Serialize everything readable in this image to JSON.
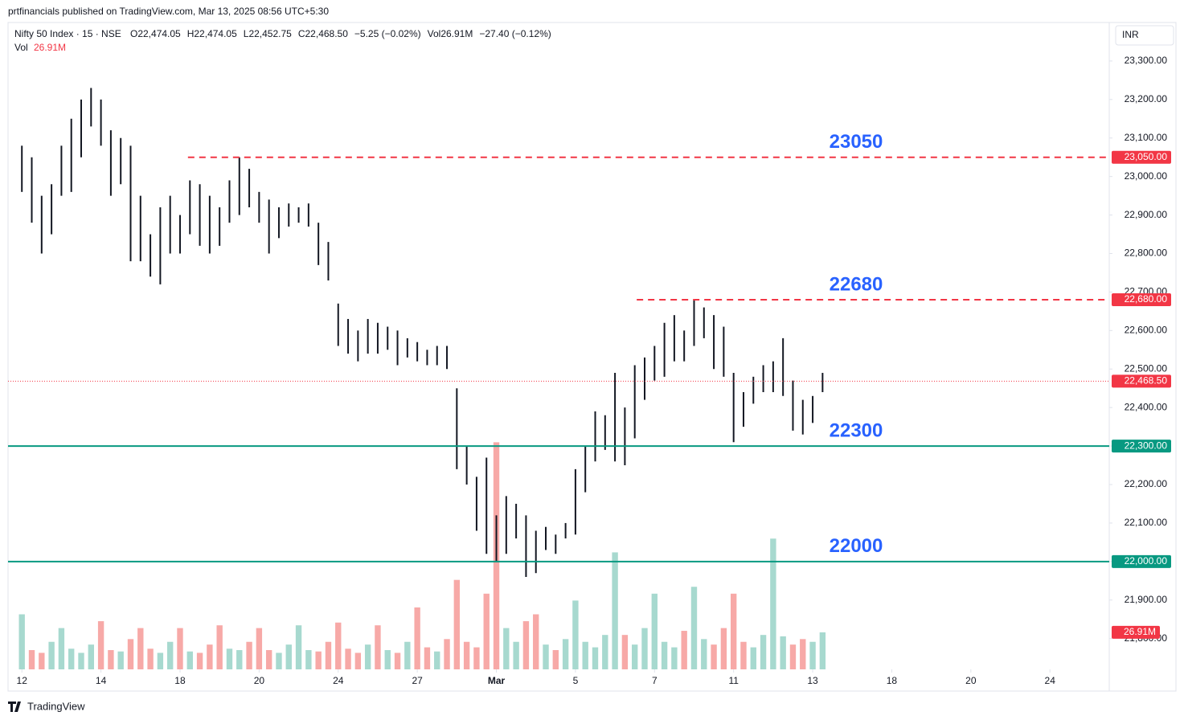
{
  "chart_data": {
    "type": "ohlc",
    "publisher": "prtfinancials published on TradingView.com, Mar 13, 2025 08:56 UTC+5:30",
    "symbol": "Nifty 50 Index · 15 · NSE",
    "legend_values": [
      "O22,474.05",
      "H22,474.05",
      "L22,452.75",
      "C22,468.50",
      "−5.25 (−0.02%)",
      "Vol26.91M",
      "−27.40 (−0.12%)"
    ],
    "volume_title": "Vol",
    "volume_value": "26.91M",
    "currency": "INR",
    "brand": "TradingView",
    "color": "#131722",
    "volume_colors": [
      "#f7a9a7",
      "#a7d9cf"
    ],
    "xlim": [
      -0.35,
      27.5
    ],
    "xticks": [
      {
        "value": 0,
        "label": "12"
      },
      {
        "value": 2,
        "label": "14"
      },
      {
        "value": 4,
        "label": "18"
      },
      {
        "value": 6,
        "label": "20"
      },
      {
        "value": 8,
        "label": "24"
      },
      {
        "value": 10,
        "label": "27"
      },
      {
        "value": 12,
        "label": "Mar"
      },
      {
        "value": 14,
        "label": "5"
      },
      {
        "value": 16,
        "label": "7"
      },
      {
        "value": 18,
        "label": "11"
      },
      {
        "value": 20,
        "label": "13"
      },
      {
        "value": 22,
        "label": "18"
      },
      {
        "value": 24,
        "label": "20"
      },
      {
        "value": 26,
        "label": "24"
      }
    ],
    "ylim": [
      21720,
      23400
    ],
    "yticks": [
      {
        "value": 21800,
        "label": "21,800.00"
      },
      {
        "value": 21900,
        "label": "21,900.00"
      },
      {
        "value": 22000,
        "label": "22,000.00"
      },
      {
        "value": 22100,
        "label": "22,100.00"
      },
      {
        "value": 22200,
        "label": "22,200.00"
      },
      {
        "value": 22300,
        "label": "22,300.00"
      },
      {
        "value": 22400,
        "label": "22,400.00"
      },
      {
        "value": 22500,
        "label": "22,500.00"
      },
      {
        "value": 22600,
        "label": "22,600.00"
      },
      {
        "value": 22700,
        "label": "22,700.00"
      },
      {
        "value": 22800,
        "label": "22,800.00"
      },
      {
        "value": 22900,
        "label": "22,900.00"
      },
      {
        "value": 23000,
        "label": "23,000.00"
      },
      {
        "value": 23100,
        "label": "23,100.00"
      },
      {
        "value": 23200,
        "label": "23,200.00"
      },
      {
        "value": 23300,
        "label": "23,300.00"
      }
    ],
    "volume_ylim": [
      0,
      470
    ],
    "x": [
      0,
      0.25,
      0.5,
      0.75,
      1,
      1.25,
      1.5,
      1.75,
      2,
      2.25,
      2.5,
      2.75,
      3,
      3.25,
      3.5,
      3.75,
      4,
      4.25,
      4.5,
      4.75,
      5,
      5.25,
      5.5,
      5.75,
      6,
      6.25,
      6.5,
      6.75,
      7,
      7.25,
      7.5,
      7.75,
      8,
      8.25,
      8.5,
      8.75,
      9,
      9.25,
      9.5,
      9.75,
      10,
      10.25,
      10.5,
      10.75,
      11,
      11.25,
      11.5,
      11.75,
      12,
      12.25,
      12.5,
      12.75,
      13,
      13.25,
      13.5,
      13.75,
      14,
      14.25,
      14.5,
      14.75,
      15,
      15.25,
      15.5,
      15.75,
      16,
      16.25,
      16.5,
      16.75,
      17,
      17.25,
      17.5,
      17.75,
      18,
      18.25,
      18.5,
      18.75,
      19,
      19.25,
      19.5,
      19.75,
      20,
      20.25
    ],
    "high": [
      23080,
      23050,
      22950,
      22980,
      23080,
      23150,
      23200,
      23230,
      23200,
      23120,
      23100,
      23080,
      22950,
      22850,
      22920,
      22950,
      22900,
      22990,
      22980,
      22950,
      22920,
      22990,
      23050,
      23020,
      22960,
      22940,
      22920,
      22930,
      22920,
      22930,
      22880,
      22830,
      22670,
      22630,
      22600,
      22630,
      22620,
      22610,
      22600,
      22580,
      22570,
      22550,
      22560,
      22560,
      22450,
      22300,
      22220,
      22270,
      22120,
      22170,
      22150,
      22120,
      22080,
      22090,
      22070,
      22100,
      22240,
      22300,
      22390,
      22380,
      22490,
      22400,
      22510,
      22530,
      22560,
      22620,
      22640,
      22600,
      22680,
      22660,
      22640,
      22610,
      22490,
      22440,
      22480,
      22510,
      22520,
      22580,
      22470,
      22420,
      22430,
      22490
    ],
    "low": [
      22960,
      22880,
      22800,
      22850,
      22950,
      22960,
      23050,
      23130,
      23080,
      22950,
      22980,
      22780,
      22780,
      22740,
      22720,
      22800,
      22800,
      22850,
      22820,
      22800,
      22820,
      22880,
      22900,
      22920,
      22880,
      22800,
      22840,
      22870,
      22880,
      22870,
      22770,
      22730,
      22560,
      22540,
      22520,
      22540,
      22540,
      22550,
      22510,
      22530,
      22520,
      22510,
      22510,
      22500,
      22240,
      22200,
      22080,
      22020,
      22000,
      22020,
      22060,
      21960,
      21970,
      22030,
      22020,
      22060,
      22070,
      22180,
      22260,
      22290,
      22260,
      22250,
      22320,
      22420,
      22470,
      22480,
      22520,
      22520,
      22560,
      22580,
      22500,
      22480,
      22310,
      22350,
      22410,
      22440,
      22440,
      22430,
      22340,
      22330,
      22360,
      22440
    ],
    "volume": [
      40,
      14,
      12,
      20,
      30,
      15,
      12,
      18,
      35,
      14,
      13,
      22,
      30,
      15,
      12,
      20,
      30,
      13,
      12,
      18,
      32,
      15,
      14,
      20,
      30,
      14,
      12,
      18,
      32,
      14,
      13,
      20,
      34,
      15,
      12,
      18,
      32,
      14,
      12,
      20,
      45,
      16,
      13,
      22,
      65,
      20,
      16,
      55,
      165,
      30,
      20,
      35,
      40,
      18,
      14,
      22,
      50,
      20,
      16,
      25,
      85,
      25,
      18,
      30,
      55,
      20,
      16,
      28,
      60,
      22,
      18,
      30,
      55,
      20,
      16,
      25,
      95,
      24,
      18,
      22,
      20,
      26.91
    ],
    "levels": [
      {
        "value": 23050,
        "label": "23,050.00",
        "annotation": "23050",
        "start": 4.2,
        "color": "#f23645",
        "style": "dashed"
      },
      {
        "value": 22680,
        "label": "22,680.00",
        "annotation": "22680",
        "start": 15.55,
        "color": "#f23645",
        "style": "dashed"
      },
      {
        "value": 22300,
        "label": "22,300.00",
        "annotation": "22300",
        "start": -0.35,
        "color": "#089981",
        "style": "solid"
      },
      {
        "value": 22000,
        "label": "22,000.00",
        "annotation": "22000",
        "start": -0.35,
        "color": "#089981",
        "style": "solid"
      }
    ],
    "last_price": {
      "value": 22468.5,
      "label": "22,468.50",
      "color": "#f23645"
    },
    "last_volume": {
      "value": 26.91,
      "label": "26.91M",
      "color": "#f23645"
    },
    "annotation_color": "#2962ff"
  }
}
